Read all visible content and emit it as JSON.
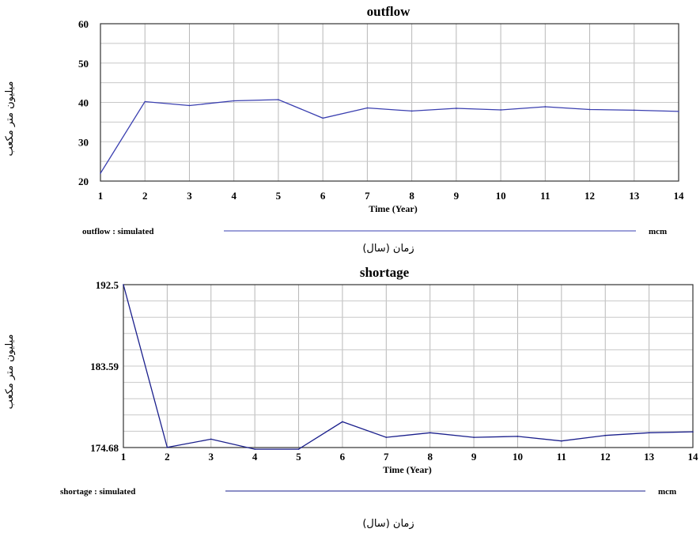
{
  "chart_data": [
    {
      "type": "line",
      "title": "outflow",
      "xlabel": "Time (Year)",
      "ylabel": "میلیون متر مکعب",
      "caption": "زمان (سال)",
      "x": [
        1,
        2,
        3,
        4,
        5,
        6,
        7,
        8,
        9,
        10,
        11,
        12,
        13,
        14
      ],
      "ylim": [
        20,
        60
      ],
      "yticks": [
        "20",
        "30",
        "40",
        "50",
        "60"
      ],
      "series": [
        {
          "name": "outflow : simulated",
          "unit": "mcm",
          "color": "#3a3fb0",
          "values": [
            22,
            40.2,
            39.2,
            40.4,
            40.7,
            36,
            38.6,
            37.8,
            38.5,
            38.1,
            38.9,
            38.2,
            38,
            37.7
          ]
        }
      ],
      "grid": true
    },
    {
      "type": "line",
      "title": "shortage",
      "xlabel": "Time (Year)",
      "ylabel": "میلیون متر مکعب",
      "caption": "زمان (سال)",
      "x": [
        1,
        2,
        3,
        4,
        5,
        6,
        7,
        8,
        9,
        10,
        11,
        12,
        13,
        14
      ],
      "ylim": [
        174.68,
        192.5
      ],
      "yticks": [
        "174.68",
        "183.59",
        "192.5"
      ],
      "series": [
        {
          "name": "shortage : simulated",
          "unit": "mcm",
          "color": "#1a1f8c",
          "values": [
            192.5,
            174.7,
            175.6,
            174.5,
            174.5,
            177.5,
            175.8,
            176.3,
            175.8,
            175.9,
            175.4,
            176.0,
            176.3,
            176.4
          ]
        }
      ],
      "grid": true
    }
  ]
}
